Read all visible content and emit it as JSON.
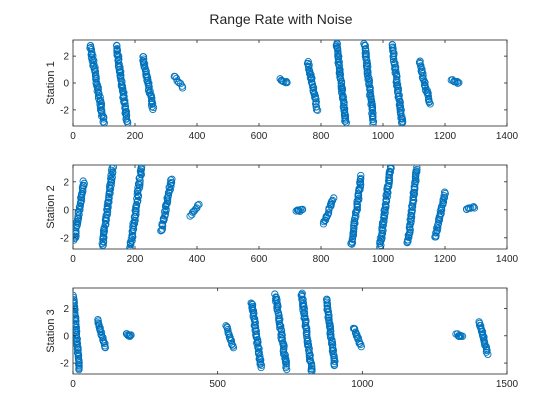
{
  "chart_data": {
    "title": "Range Rate with Noise",
    "marker_color": "#0072BD",
    "type": "scatter",
    "marker": "circle",
    "grid": false,
    "axes": [
      {
        "id": "station-1",
        "ylabel": "Station 1",
        "xlim": [
          0,
          1400
        ],
        "ylim": [
          -3.2,
          3.2
        ],
        "xticks": [
          0,
          200,
          400,
          600,
          800,
          1000,
          1200,
          1400
        ],
        "yticks": [
          -2,
          0,
          2
        ],
        "clusters": [
          {
            "x": [
              55,
              100
            ],
            "y": [
              -3,
              2.8
            ],
            "trend": "down"
          },
          {
            "x": [
              140,
              175
            ],
            "y": [
              -3,
              2.8
            ],
            "trend": "down"
          },
          {
            "x": [
              225,
              258
            ],
            "y": [
              -1.9,
              2
            ],
            "trend": "down"
          },
          {
            "x": [
              325,
              355
            ],
            "y": [
              -0.3,
              0.5
            ],
            "trend": "down"
          },
          {
            "x": [
              668,
              692
            ],
            "y": [
              0,
              0.3
            ],
            "trend": "down"
          },
          {
            "x": [
              758,
              788
            ],
            "y": [
              -2,
              1.6
            ],
            "trend": "down"
          },
          {
            "x": [
              850,
              880
            ],
            "y": [
              -3,
              3
            ],
            "trend": "down"
          },
          {
            "x": [
              940,
              970
            ],
            "y": [
              -3,
              2.9
            ],
            "trend": "down"
          },
          {
            "x": [
              1030,
              1062
            ],
            "y": [
              -3,
              2.9
            ],
            "trend": "down"
          },
          {
            "x": [
              1118,
              1150
            ],
            "y": [
              -1.5,
              1.6
            ],
            "trend": "down"
          },
          {
            "x": [
              1220,
              1245
            ],
            "y": [
              0,
              0.2
            ],
            "trend": "down"
          }
        ]
      },
      {
        "id": "station-2",
        "ylabel": "Station 2",
        "xlim": [
          0,
          1400
        ],
        "ylim": [
          -2.8,
          3.2
        ],
        "xticks": [
          0,
          200,
          400,
          600,
          800,
          1000,
          1200,
          1400
        ],
        "yticks": [
          -2,
          0,
          2
        ],
        "clusters": [
          {
            "x": [
              5,
              35
            ],
            "y": [
              -2.2,
              2
            ],
            "trend": "up"
          },
          {
            "x": [
              95,
              128
            ],
            "y": [
              -2.6,
              3
            ],
            "trend": "up"
          },
          {
            "x": [
              185,
              222
            ],
            "y": [
              -2.8,
              3.1
            ],
            "trend": "up"
          },
          {
            "x": [
              285,
              318
            ],
            "y": [
              -1.5,
              2.2
            ],
            "trend": "up"
          },
          {
            "x": [
              378,
              405
            ],
            "y": [
              -0.4,
              0.4
            ],
            "trend": "up"
          },
          {
            "x": [
              720,
              740
            ],
            "y": [
              -0.1,
              0
            ],
            "trend": "up"
          },
          {
            "x": [
              808,
              840
            ],
            "y": [
              -1,
              0.8
            ],
            "trend": "up"
          },
          {
            "x": [
              898,
              930
            ],
            "y": [
              -2.5,
              2.4
            ],
            "trend": "up"
          },
          {
            "x": [
              990,
              1025
            ],
            "y": [
              -2.7,
              3.1
            ],
            "trend": "up"
          },
          {
            "x": [
              1080,
              1110
            ],
            "y": [
              -2.4,
              3
            ],
            "trend": "up"
          },
          {
            "x": [
              1168,
              1200
            ],
            "y": [
              -2,
              1.2
            ],
            "trend": "up"
          },
          {
            "x": [
              1268,
              1295
            ],
            "y": [
              0,
              0.2
            ],
            "trend": "up"
          }
        ]
      },
      {
        "id": "station-3",
        "ylabel": "Station 3",
        "xlim": [
          0,
          1500
        ],
        "ylim": [
          -2.8,
          3.5
        ],
        "xticks": [
          0,
          500,
          1000,
          1500
        ],
        "yticks": [
          -2,
          0,
          2
        ],
        "clusters": [
          {
            "x": [
              2,
              22
            ],
            "y": [
              -2.5,
              2.9
            ],
            "trend": "down"
          },
          {
            "x": [
              85,
              112
            ],
            "y": [
              -0.9,
              1.2
            ],
            "trend": "down"
          },
          {
            "x": [
              185,
              200
            ],
            "y": [
              0,
              0.1
            ],
            "trend": "down"
          },
          {
            "x": [
              530,
              555
            ],
            "y": [
              -0.9,
              0.7
            ],
            "trend": "down"
          },
          {
            "x": [
              618,
              650
            ],
            "y": [
              -2.3,
              2.4
            ],
            "trend": "down"
          },
          {
            "x": [
              700,
              738
            ],
            "y": [
              -2.4,
              3
            ],
            "trend": "down"
          },
          {
            "x": [
              790,
              825
            ],
            "y": [
              -2.6,
              3.1
            ],
            "trend": "down"
          },
          {
            "x": [
              875,
              905
            ],
            "y": [
              -2.2,
              2.7
            ],
            "trend": "down"
          },
          {
            "x": [
              970,
              995
            ],
            "y": [
              -0.8,
              0.6
            ],
            "trend": "down"
          },
          {
            "x": [
              1325,
              1345
            ],
            "y": [
              -0.1,
              0.1
            ],
            "trend": "down"
          },
          {
            "x": [
              1405,
              1432
            ],
            "y": [
              -1.3,
              1
            ],
            "trend": "down"
          }
        ]
      }
    ]
  }
}
